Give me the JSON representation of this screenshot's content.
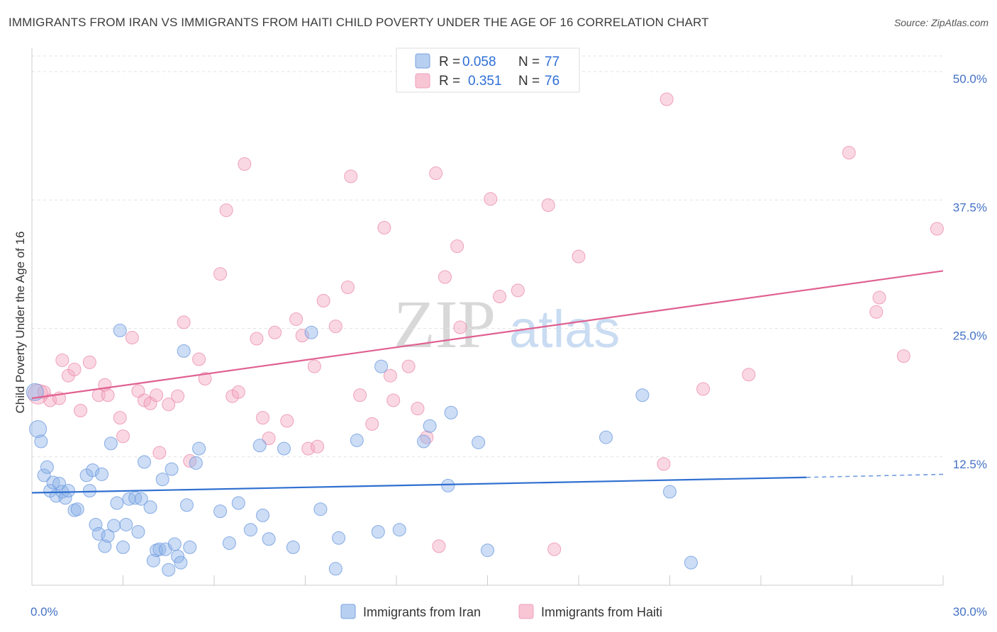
{
  "header": {
    "title": "IMMIGRANTS FROM IRAN VS IMMIGRANTS FROM HAITI CHILD POVERTY UNDER THE AGE OF 16 CORRELATION CHART",
    "source": "Source: ZipAtlas.com"
  },
  "watermark": {
    "zip": "ZIP",
    "atlas": "atlas"
  },
  "legend": {
    "rows": [
      {
        "r_label": "R = ",
        "r_value": "0.058",
        "n_label": "N = ",
        "n_value": "77"
      },
      {
        "r_label": "R = ",
        "r_value": "0.351",
        "n_label": "N = ",
        "n_value": "76"
      }
    ]
  },
  "chart_data": {
    "type": "scatter",
    "title": "IMMIGRANTS FROM IRAN VS IMMIGRANTS FROM HAITI CHILD POVERTY UNDER THE AGE OF 16 CORRELATION CHART",
    "xlabel": "",
    "ylabel": "Child Poverty Under the Age of 16",
    "xlim": [
      0,
      30
    ],
    "ylim": [
      0,
      52
    ],
    "x_tick_labels": [
      "0.0%",
      "30.0%"
    ],
    "y_tick_labels": [
      "12.5%",
      "25.0%",
      "37.5%",
      "50.0%"
    ],
    "y_ticks": [
      12.5,
      25.0,
      37.5,
      50.0
    ],
    "grid": "horizontal dashed",
    "legend_position": "top-center",
    "series": [
      {
        "name": "Immigrants from Iran",
        "color": "#8fb4e8",
        "line_color": "#2f6fd0",
        "trend": {
          "x0": 0,
          "y0": 9.0,
          "x1": 25.5,
          "y1": 10.5,
          "dashed_to": 30,
          "dashed_y": 10.8
        },
        "points": [
          [
            0.1,
            18.8
          ],
          [
            0.2,
            15.2
          ],
          [
            0.3,
            14.0
          ],
          [
            0.4,
            10.7
          ],
          [
            0.5,
            11.5
          ],
          [
            0.6,
            9.2
          ],
          [
            0.7,
            10.0
          ],
          [
            0.8,
            8.7
          ],
          [
            0.9,
            9.9
          ],
          [
            1.0,
            9.1
          ],
          [
            1.1,
            8.5
          ],
          [
            1.2,
            9.2
          ],
          [
            1.4,
            7.3
          ],
          [
            1.5,
            7.4
          ],
          [
            1.8,
            10.7
          ],
          [
            1.9,
            9.2
          ],
          [
            2.0,
            11.2
          ],
          [
            2.1,
            5.9
          ],
          [
            2.2,
            5.0
          ],
          [
            2.3,
            10.8
          ],
          [
            2.4,
            3.8
          ],
          [
            2.5,
            4.8
          ],
          [
            2.6,
            13.8
          ],
          [
            2.7,
            5.8
          ],
          [
            2.8,
            8.0
          ],
          [
            2.9,
            24.8
          ],
          [
            3.0,
            3.7
          ],
          [
            3.1,
            5.9
          ],
          [
            3.2,
            8.4
          ],
          [
            3.4,
            8.5
          ],
          [
            3.5,
            5.2
          ],
          [
            3.6,
            8.4
          ],
          [
            3.7,
            12.0
          ],
          [
            3.9,
            7.6
          ],
          [
            4.0,
            2.4
          ],
          [
            4.1,
            3.4
          ],
          [
            4.2,
            3.5
          ],
          [
            4.3,
            10.3
          ],
          [
            4.4,
            3.5
          ],
          [
            4.5,
            1.5
          ],
          [
            4.6,
            11.3
          ],
          [
            4.7,
            4.0
          ],
          [
            4.8,
            2.8
          ],
          [
            4.9,
            2.2
          ],
          [
            5.0,
            22.8
          ],
          [
            5.1,
            7.8
          ],
          [
            5.2,
            3.7
          ],
          [
            5.4,
            11.9
          ],
          [
            5.5,
            13.3
          ],
          [
            6.2,
            7.2
          ],
          [
            6.5,
            4.1
          ],
          [
            6.8,
            8.0
          ],
          [
            7.2,
            5.4
          ],
          [
            7.5,
            13.6
          ],
          [
            7.6,
            6.8
          ],
          [
            7.8,
            4.5
          ],
          [
            8.3,
            13.3
          ],
          [
            8.6,
            3.7
          ],
          [
            9.2,
            24.6
          ],
          [
            9.5,
            7.4
          ],
          [
            10.0,
            1.6
          ],
          [
            10.1,
            4.6
          ],
          [
            10.7,
            14.1
          ],
          [
            11.4,
            5.2
          ],
          [
            11.5,
            21.3
          ],
          [
            12.1,
            5.4
          ],
          [
            12.9,
            14.0
          ],
          [
            13.1,
            15.5
          ],
          [
            13.7,
            9.7
          ],
          [
            13.8,
            16.8
          ],
          [
            14.7,
            13.9
          ],
          [
            15.0,
            3.4
          ],
          [
            18.9,
            14.4
          ],
          [
            20.1,
            18.5
          ],
          [
            21.0,
            9.1
          ],
          [
            21.7,
            2.2
          ]
        ]
      },
      {
        "name": "Immigrants from Haiti",
        "color": "#f4a9c0",
        "line_color": "#e06090",
        "trend": {
          "x0": 0,
          "y0": 18.2,
          "x1": 30,
          "y1": 30.6
        },
        "points": [
          [
            0.2,
            18.6
          ],
          [
            0.4,
            18.8
          ],
          [
            0.6,
            18.0
          ],
          [
            0.9,
            18.2
          ],
          [
            1.0,
            21.9
          ],
          [
            1.2,
            20.4
          ],
          [
            1.4,
            21.0
          ],
          [
            1.6,
            17.0
          ],
          [
            1.9,
            21.7
          ],
          [
            2.2,
            18.5
          ],
          [
            2.4,
            19.5
          ],
          [
            2.5,
            18.5
          ],
          [
            2.9,
            16.3
          ],
          [
            3.0,
            14.5
          ],
          [
            3.3,
            24.1
          ],
          [
            3.5,
            18.9
          ],
          [
            3.7,
            18.0
          ],
          [
            3.9,
            17.7
          ],
          [
            4.1,
            18.5
          ],
          [
            4.2,
            12.9
          ],
          [
            4.5,
            17.6
          ],
          [
            4.8,
            18.4
          ],
          [
            5.0,
            25.6
          ],
          [
            5.2,
            12.1
          ],
          [
            5.5,
            22.0
          ],
          [
            5.7,
            20.1
          ],
          [
            6.2,
            30.3
          ],
          [
            6.4,
            36.5
          ],
          [
            6.6,
            18.4
          ],
          [
            6.8,
            18.8
          ],
          [
            7.0,
            41.0
          ],
          [
            7.4,
            24.0
          ],
          [
            7.6,
            16.3
          ],
          [
            7.8,
            14.3
          ],
          [
            8.0,
            24.6
          ],
          [
            8.4,
            16.0
          ],
          [
            8.7,
            25.9
          ],
          [
            8.9,
            24.3
          ],
          [
            9.1,
            13.3
          ],
          [
            9.3,
            21.3
          ],
          [
            9.4,
            13.5
          ],
          [
            9.6,
            27.7
          ],
          [
            10.0,
            25.2
          ],
          [
            10.4,
            29.0
          ],
          [
            10.5,
            39.8
          ],
          [
            10.8,
            18.5
          ],
          [
            11.2,
            15.7
          ],
          [
            11.6,
            34.8
          ],
          [
            11.8,
            20.4
          ],
          [
            11.9,
            18.0
          ],
          [
            12.4,
            21.3
          ],
          [
            12.7,
            17.2
          ],
          [
            13.0,
            14.4
          ],
          [
            13.3,
            40.1
          ],
          [
            13.4,
            3.8
          ],
          [
            13.6,
            30.0
          ],
          [
            14.0,
            33.0
          ],
          [
            14.1,
            25.1
          ],
          [
            15.1,
            37.6
          ],
          [
            15.4,
            28.1
          ],
          [
            16.0,
            28.7
          ],
          [
            17.0,
            37.0
          ],
          [
            17.2,
            3.5
          ],
          [
            18.0,
            32.0
          ],
          [
            20.8,
            11.8
          ],
          [
            20.9,
            47.3
          ],
          [
            22.1,
            19.1
          ],
          [
            23.6,
            20.5
          ],
          [
            26.9,
            42.1
          ],
          [
            27.8,
            26.6
          ],
          [
            27.9,
            28.0
          ],
          [
            28.7,
            22.3
          ],
          [
            29.8,
            34.7
          ]
        ]
      }
    ]
  },
  "bottom_legend": {
    "items": [
      "Immigrants from Iran",
      "Immigrants from Haiti"
    ]
  }
}
